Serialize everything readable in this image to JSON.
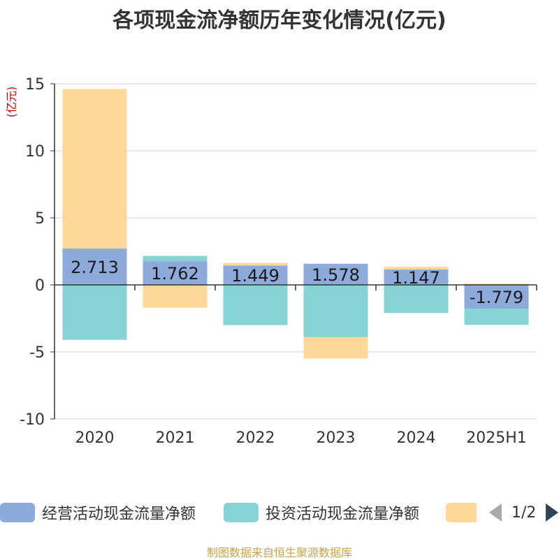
{
  "title": "各项现金流净额历年变化情况(亿元)",
  "footer": "制图数据来自恒生聚源数据库",
  "pager": {
    "text": "1/2"
  },
  "chart_data": {
    "type": "bar",
    "stacked": true,
    "unit_label": "(亿元)",
    "categories": [
      "2020",
      "2021",
      "2022",
      "2023",
      "2024",
      "2025H1"
    ],
    "ylim": [
      -10,
      15
    ],
    "yticks": [
      15,
      10,
      5,
      0,
      -5,
      -10
    ],
    "series": [
      {
        "name": "经营活动现金流量净额",
        "color": "#8eaadb",
        "values": [
          2.713,
          1.762,
          1.449,
          1.578,
          1.147,
          -1.779
        ],
        "labels": [
          "2.713",
          "1.762",
          "1.449",
          "1.578",
          "1.147",
          "-1.779"
        ]
      },
      {
        "name": "投资活动现金流量净额",
        "color": "#86d4d6",
        "values": [
          -4.1,
          0.4,
          -3.0,
          -3.9,
          -2.1,
          -1.2
        ]
      },
      {
        "name": "",
        "color": "#fdd999",
        "values": [
          11.9,
          -1.7,
          0.2,
          -1.6,
          0.2,
          0.1
        ]
      }
    ],
    "grid": true,
    "legend_position": "bottom"
  }
}
